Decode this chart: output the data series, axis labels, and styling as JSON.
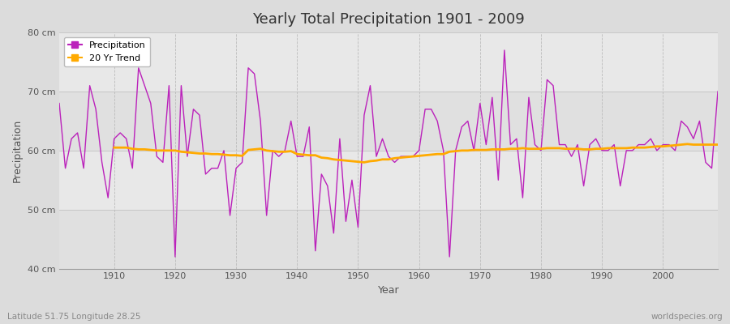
{
  "title": "Yearly Total Precipitation 1901 - 2009",
  "ylabel": "Precipitation",
  "xlabel": "Year",
  "subtitle_left": "Latitude 51.75 Longitude 28.25",
  "subtitle_right": "worldspecies.org",
  "ylim": [
    40,
    80
  ],
  "yticks": [
    40,
    50,
    60,
    70,
    80
  ],
  "ytick_labels": [
    "40 cm",
    "50 cm",
    "60 cm",
    "70 cm",
    "80 cm"
  ],
  "xlim": [
    1901,
    2009
  ],
  "bg_color": "#dcdcdc",
  "plot_bg_color": "#e8e8e8",
  "strip_color": "#d0d0d0",
  "precip_color": "#bb22bb",
  "trend_color": "#ffaa00",
  "legend_precip": "Precipitation",
  "legend_trend": "20 Yr Trend",
  "years": [
    1901,
    1902,
    1903,
    1904,
    1905,
    1906,
    1907,
    1908,
    1909,
    1910,
    1911,
    1912,
    1913,
    1914,
    1915,
    1916,
    1917,
    1918,
    1919,
    1920,
    1921,
    1922,
    1923,
    1924,
    1925,
    1926,
    1927,
    1928,
    1929,
    1930,
    1931,
    1932,
    1933,
    1934,
    1935,
    1936,
    1937,
    1938,
    1939,
    1940,
    1941,
    1942,
    1943,
    1944,
    1945,
    1946,
    1947,
    1948,
    1949,
    1950,
    1951,
    1952,
    1953,
    1954,
    1955,
    1956,
    1957,
    1958,
    1959,
    1960,
    1961,
    1962,
    1963,
    1964,
    1965,
    1966,
    1967,
    1968,
    1969,
    1970,
    1971,
    1972,
    1973,
    1974,
    1975,
    1976,
    1977,
    1978,
    1979,
    1980,
    1981,
    1982,
    1983,
    1984,
    1985,
    1986,
    1987,
    1988,
    1989,
    1990,
    1991,
    1992,
    1993,
    1994,
    1995,
    1996,
    1997,
    1998,
    1999,
    2000,
    2001,
    2002,
    2003,
    2004,
    2005,
    2006,
    2007,
    2008,
    2009
  ],
  "precip": [
    68,
    57,
    62,
    63,
    57,
    71,
    67,
    58,
    52,
    62,
    63,
    62,
    57,
    74,
    71,
    68,
    59,
    58,
    71,
    42,
    71,
    59,
    67,
    66,
    56,
    57,
    57,
    60,
    49,
    57,
    58,
    74,
    73,
    65,
    49,
    60,
    59,
    60,
    65,
    59,
    59,
    64,
    43,
    56,
    54,
    46,
    62,
    48,
    55,
    47,
    66,
    71,
    59,
    62,
    59,
    58,
    59,
    59,
    59,
    60,
    67,
    67,
    65,
    60,
    42,
    60,
    64,
    65,
    60,
    68,
    61,
    69,
    55,
    77,
    61,
    62,
    52,
    69,
    61,
    60,
    72,
    71,
    61,
    61,
    59,
    61,
    54,
    61,
    62,
    60,
    60,
    61,
    54,
    60,
    60,
    61,
    61,
    62,
    60,
    61,
    61,
    60,
    65,
    64,
    62,
    65,
    58,
    57,
    70
  ],
  "trend": [
    null,
    null,
    null,
    null,
    null,
    null,
    null,
    null,
    null,
    60.5,
    60.5,
    60.5,
    60.3,
    60.2,
    60.2,
    60.1,
    60.0,
    60.0,
    60.0,
    60.0,
    59.8,
    59.7,
    59.6,
    59.5,
    59.5,
    59.4,
    59.4,
    59.3,
    59.2,
    59.2,
    59.1,
    60.1,
    60.2,
    60.3,
    60.0,
    59.9,
    59.8,
    59.8,
    59.9,
    59.4,
    59.3,
    59.2,
    59.2,
    58.8,
    58.7,
    58.5,
    58.4,
    58.3,
    58.2,
    58.1,
    58.0,
    58.2,
    58.3,
    58.5,
    58.5,
    58.7,
    58.8,
    58.9,
    59.0,
    59.1,
    59.2,
    59.3,
    59.4,
    59.4,
    59.8,
    59.9,
    60.0,
    60.0,
    60.1,
    60.1,
    60.1,
    60.2,
    60.2,
    60.2,
    60.3,
    60.3,
    60.4,
    60.3,
    60.3,
    60.3,
    60.4,
    60.4,
    60.4,
    60.3,
    60.3,
    60.3,
    60.2,
    60.2,
    60.3,
    60.3,
    60.4,
    60.4,
    60.4,
    60.4,
    60.5,
    60.5,
    60.5,
    60.6,
    60.7,
    60.7,
    60.8,
    60.9,
    61.0,
    61.1,
    61.0,
    61.0,
    61.0,
    61.0,
    61.0
  ]
}
